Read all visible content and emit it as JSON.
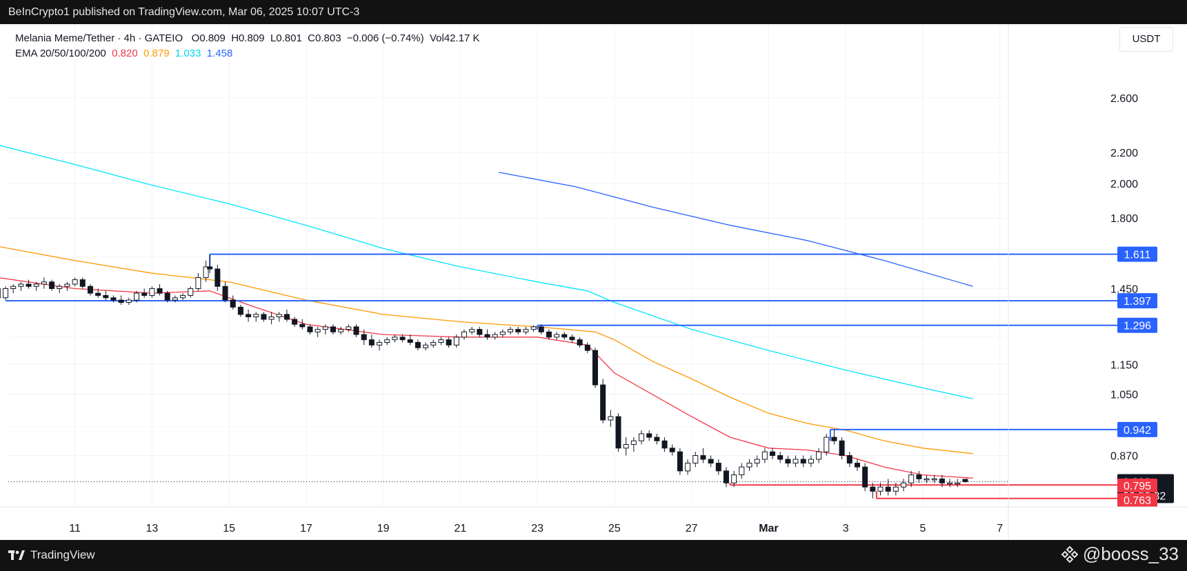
{
  "header": {
    "publisher_text": "BeInCrypto1 published on TradingView.com, Mar 06, 2025 10:07 UTC-3"
  },
  "legend": {
    "symbol": "Melania Meme/Tether · 4h · GATEIO",
    "open": "O0.809",
    "high": "H0.809",
    "low": "L0.801",
    "close": "C0.803",
    "change": "−0.006 (−0.74%)",
    "volume": "Vol42.17 K",
    "ema_label": "EMA 20/50/100/200",
    "ema20": "0.820",
    "ema50": "0.879",
    "ema100": "1.033",
    "ema200": "1.458"
  },
  "currency_button": "USDT",
  "footer": {
    "logo_text": "TradingView",
    "handle": "@booss_33"
  },
  "colors": {
    "ema20": "#f23645",
    "ema50": "#ff9800",
    "ema100": "#00e5ff",
    "ema200": "#2962ff",
    "level_blue": "#2962ff",
    "level_red": "#f23645",
    "current_price_badge": "#131722"
  },
  "chart_data": {
    "type": "candlestick",
    "scale": "log",
    "xlim": [
      "Feb 09",
      "Mar 07"
    ],
    "ylim": [
      0.73,
      2.9
    ],
    "x_tick_labels": [
      "11",
      "13",
      "15",
      "17",
      "19",
      "21",
      "23",
      "25",
      "27",
      "Mar",
      "3",
      "5",
      "7"
    ],
    "y_tick_labels": [
      "2.600",
      "2.200",
      "2.000",
      "1.800",
      "1.450",
      "1.150",
      "1.050",
      "0.870"
    ],
    "y_tick_values": [
      2.6,
      2.2,
      2.0,
      1.8,
      1.45,
      1.15,
      1.05,
      0.87
    ],
    "current_price": {
      "value": 0.803,
      "label": "0.803",
      "countdown": "02:52:32"
    },
    "levels": [
      {
        "value": 1.611,
        "label": "1.611",
        "color": "blue",
        "from_day": 14.5
      },
      {
        "value": 1.397,
        "label": "1.397",
        "color": "blue",
        "from_day": 9.2
      },
      {
        "value": 1.296,
        "label": "1.296",
        "color": "blue",
        "from_day": 23
      },
      {
        "value": 0.942,
        "label": "0.942",
        "color": "blue",
        "from_day": 30.6
      },
      {
        "value": 0.795,
        "label": "0.795",
        "color": "red",
        "from_day": 28
      },
      {
        "value": 0.763,
        "label": "0.763",
        "color": "red",
        "from_day": 31.8
      }
    ],
    "ema_series": [
      {
        "name": "EMA 20",
        "points": [
          [
            9.0,
            1.5
          ],
          [
            11,
            1.45
          ],
          [
            13,
            1.43
          ],
          [
            14.5,
            1.44
          ],
          [
            15.5,
            1.38
          ],
          [
            17,
            1.3
          ],
          [
            19,
            1.26
          ],
          [
            21,
            1.25
          ],
          [
            23,
            1.25
          ],
          [
            24.3,
            1.22
          ],
          [
            25,
            1.12
          ],
          [
            27,
            0.98
          ],
          [
            28,
            0.92
          ],
          [
            29,
            0.89
          ],
          [
            30,
            0.885
          ],
          [
            31,
            0.87
          ],
          [
            32,
            0.84
          ],
          [
            33,
            0.82
          ],
          [
            34.3,
            0.812
          ]
        ]
      },
      {
        "name": "EMA 50",
        "points": [
          [
            9.0,
            1.65
          ],
          [
            11,
            1.58
          ],
          [
            13,
            1.52
          ],
          [
            15,
            1.48
          ],
          [
            17,
            1.4
          ],
          [
            19,
            1.34
          ],
          [
            21,
            1.31
          ],
          [
            23,
            1.29
          ],
          [
            24.5,
            1.27
          ],
          [
            25,
            1.24
          ],
          [
            26,
            1.16
          ],
          [
            27,
            1.1
          ],
          [
            28,
            1.04
          ],
          [
            29,
            0.99
          ],
          [
            30,
            0.96
          ],
          [
            31,
            0.94
          ],
          [
            32,
            0.91
          ],
          [
            33,
            0.89
          ],
          [
            34.3,
            0.875
          ]
        ]
      },
      {
        "name": "EMA 100",
        "points": [
          [
            9.0,
            2.25
          ],
          [
            11,
            2.12
          ],
          [
            13,
            1.99
          ],
          [
            15,
            1.88
          ],
          [
            17,
            1.76
          ],
          [
            19,
            1.64
          ],
          [
            21,
            1.55
          ],
          [
            23,
            1.48
          ],
          [
            24.3,
            1.44
          ],
          [
            25,
            1.39
          ],
          [
            27,
            1.28
          ],
          [
            29,
            1.2
          ],
          [
            31,
            1.13
          ],
          [
            33,
            1.07
          ],
          [
            34.3,
            1.035
          ]
        ]
      },
      {
        "name": "EMA 200",
        "points": [
          [
            22.0,
            2.07
          ],
          [
            24,
            1.98
          ],
          [
            26,
            1.86
          ],
          [
            28,
            1.76
          ],
          [
            30,
            1.68
          ],
          [
            32,
            1.58
          ],
          [
            34.3,
            1.46
          ]
        ]
      }
    ],
    "candles": [
      [
        9.0,
        1.45,
        1.48,
        1.4,
        1.41
      ],
      [
        9.2,
        1.41,
        1.46,
        1.4,
        1.45
      ],
      [
        9.4,
        1.45,
        1.47,
        1.43,
        1.46
      ],
      [
        9.6,
        1.46,
        1.48,
        1.44,
        1.47
      ],
      [
        9.8,
        1.47,
        1.49,
        1.45,
        1.46
      ],
      [
        10.0,
        1.46,
        1.48,
        1.44,
        1.47
      ],
      [
        10.2,
        1.47,
        1.5,
        1.45,
        1.48
      ],
      [
        10.4,
        1.48,
        1.49,
        1.44,
        1.45
      ],
      [
        10.6,
        1.45,
        1.47,
        1.43,
        1.46
      ],
      [
        10.8,
        1.46,
        1.48,
        1.44,
        1.47
      ],
      [
        11.0,
        1.47,
        1.5,
        1.46,
        1.49
      ],
      [
        11.2,
        1.49,
        1.5,
        1.45,
        1.46
      ],
      [
        11.4,
        1.46,
        1.47,
        1.42,
        1.43
      ],
      [
        11.6,
        1.43,
        1.45,
        1.41,
        1.42
      ],
      [
        11.8,
        1.42,
        1.44,
        1.4,
        1.41
      ],
      [
        12.0,
        1.41,
        1.42,
        1.39,
        1.4
      ],
      [
        12.2,
        1.4,
        1.42,
        1.38,
        1.39
      ],
      [
        12.4,
        1.39,
        1.41,
        1.38,
        1.4
      ],
      [
        12.6,
        1.4,
        1.44,
        1.39,
        1.43
      ],
      [
        12.8,
        1.43,
        1.45,
        1.41,
        1.42
      ],
      [
        13.0,
        1.42,
        1.46,
        1.41,
        1.45
      ],
      [
        13.2,
        1.45,
        1.47,
        1.42,
        1.43
      ],
      [
        13.4,
        1.43,
        1.44,
        1.39,
        1.4
      ],
      [
        13.6,
        1.4,
        1.42,
        1.39,
        1.41
      ],
      [
        13.8,
        1.41,
        1.43,
        1.4,
        1.42
      ],
      [
        14.0,
        1.42,
        1.46,
        1.41,
        1.45
      ],
      [
        14.2,
        1.45,
        1.52,
        1.44,
        1.5
      ],
      [
        14.4,
        1.5,
        1.58,
        1.48,
        1.55
      ],
      [
        14.5,
        1.55,
        1.611,
        1.52,
        1.54
      ],
      [
        14.7,
        1.54,
        1.56,
        1.44,
        1.46
      ],
      [
        14.9,
        1.46,
        1.48,
        1.39,
        1.4
      ],
      [
        15.1,
        1.4,
        1.42,
        1.36,
        1.37
      ],
      [
        15.3,
        1.37,
        1.38,
        1.33,
        1.34
      ],
      [
        15.5,
        1.34,
        1.36,
        1.31,
        1.33
      ],
      [
        15.7,
        1.33,
        1.35,
        1.31,
        1.34
      ],
      [
        15.9,
        1.34,
        1.35,
        1.31,
        1.32
      ],
      [
        16.1,
        1.32,
        1.35,
        1.3,
        1.33
      ],
      [
        16.3,
        1.33,
        1.35,
        1.31,
        1.34
      ],
      [
        16.5,
        1.34,
        1.36,
        1.31,
        1.32
      ],
      [
        16.7,
        1.32,
        1.33,
        1.29,
        1.3
      ],
      [
        16.9,
        1.3,
        1.32,
        1.28,
        1.29
      ],
      [
        17.1,
        1.29,
        1.3,
        1.26,
        1.27
      ],
      [
        17.3,
        1.27,
        1.29,
        1.25,
        1.28
      ],
      [
        17.5,
        1.28,
        1.3,
        1.26,
        1.29
      ],
      [
        17.7,
        1.29,
        1.3,
        1.26,
        1.27
      ],
      [
        17.9,
        1.27,
        1.29,
        1.26,
        1.28
      ],
      [
        18.1,
        1.28,
        1.3,
        1.27,
        1.29
      ],
      [
        18.3,
        1.29,
        1.3,
        1.25,
        1.26
      ],
      [
        18.5,
        1.26,
        1.28,
        1.22,
        1.24
      ],
      [
        18.7,
        1.24,
        1.26,
        1.21,
        1.22
      ],
      [
        18.9,
        1.22,
        1.24,
        1.2,
        1.23
      ],
      [
        19.1,
        1.23,
        1.25,
        1.22,
        1.24
      ],
      [
        19.3,
        1.24,
        1.26,
        1.23,
        1.25
      ],
      [
        19.5,
        1.25,
        1.26,
        1.23,
        1.24
      ],
      [
        19.7,
        1.24,
        1.26,
        1.22,
        1.23
      ],
      [
        19.9,
        1.23,
        1.24,
        1.2,
        1.21
      ],
      [
        20.1,
        1.21,
        1.23,
        1.2,
        1.22
      ],
      [
        20.3,
        1.22,
        1.24,
        1.21,
        1.23
      ],
      [
        20.5,
        1.23,
        1.25,
        1.22,
        1.24
      ],
      [
        20.7,
        1.24,
        1.25,
        1.21,
        1.22
      ],
      [
        20.9,
        1.22,
        1.26,
        1.21,
        1.25
      ],
      [
        21.1,
        1.25,
        1.28,
        1.24,
        1.27
      ],
      [
        21.3,
        1.27,
        1.29,
        1.26,
        1.28
      ],
      [
        21.5,
        1.28,
        1.29,
        1.25,
        1.26
      ],
      [
        21.7,
        1.26,
        1.28,
        1.24,
        1.25
      ],
      [
        21.9,
        1.25,
        1.27,
        1.24,
        1.26
      ],
      [
        22.1,
        1.26,
        1.28,
        1.25,
        1.27
      ],
      [
        22.3,
        1.27,
        1.29,
        1.26,
        1.28
      ],
      [
        22.5,
        1.28,
        1.29,
        1.26,
        1.27
      ],
      [
        22.7,
        1.27,
        1.29,
        1.26,
        1.28
      ],
      [
        22.9,
        1.28,
        1.296,
        1.27,
        1.29
      ],
      [
        23.1,
        1.29,
        1.3,
        1.26,
        1.27
      ],
      [
        23.3,
        1.27,
        1.28,
        1.24,
        1.25
      ],
      [
        23.5,
        1.25,
        1.27,
        1.24,
        1.26
      ],
      [
        23.7,
        1.26,
        1.27,
        1.24,
        1.25
      ],
      [
        23.9,
        1.25,
        1.26,
        1.23,
        1.24
      ],
      [
        24.1,
        1.24,
        1.25,
        1.21,
        1.22
      ],
      [
        24.3,
        1.22,
        1.23,
        1.19,
        1.2
      ],
      [
        24.5,
        1.2,
        1.21,
        1.07,
        1.08
      ],
      [
        24.7,
        1.08,
        1.1,
        0.96,
        0.97
      ],
      [
        24.9,
        0.97,
        1.0,
        0.95,
        0.98
      ],
      [
        25.1,
        0.98,
        0.99,
        0.88,
        0.89
      ],
      [
        25.3,
        0.89,
        0.92,
        0.87,
        0.9
      ],
      [
        25.5,
        0.9,
        0.92,
        0.88,
        0.91
      ],
      [
        25.7,
        0.91,
        0.94,
        0.9,
        0.93
      ],
      [
        25.9,
        0.93,
        0.94,
        0.91,
        0.92
      ],
      [
        26.1,
        0.92,
        0.93,
        0.9,
        0.91
      ],
      [
        26.3,
        0.91,
        0.92,
        0.88,
        0.89
      ],
      [
        26.5,
        0.89,
        0.9,
        0.87,
        0.88
      ],
      [
        26.7,
        0.88,
        0.89,
        0.82,
        0.83
      ],
      [
        26.9,
        0.83,
        0.86,
        0.82,
        0.85
      ],
      [
        27.1,
        0.85,
        0.88,
        0.84,
        0.87
      ],
      [
        27.3,
        0.87,
        0.89,
        0.85,
        0.86
      ],
      [
        27.5,
        0.86,
        0.87,
        0.84,
        0.85
      ],
      [
        27.7,
        0.85,
        0.86,
        0.82,
        0.83
      ],
      [
        27.9,
        0.83,
        0.84,
        0.79,
        0.8
      ],
      [
        28.1,
        0.8,
        0.83,
        0.79,
        0.82
      ],
      [
        28.3,
        0.82,
        0.85,
        0.81,
        0.84
      ],
      [
        28.5,
        0.84,
        0.86,
        0.83,
        0.85
      ],
      [
        28.7,
        0.85,
        0.87,
        0.84,
        0.86
      ],
      [
        28.9,
        0.86,
        0.89,
        0.85,
        0.88
      ],
      [
        29.1,
        0.88,
        0.89,
        0.86,
        0.87
      ],
      [
        29.3,
        0.87,
        0.88,
        0.85,
        0.86
      ],
      [
        29.5,
        0.86,
        0.87,
        0.84,
        0.85
      ],
      [
        29.7,
        0.85,
        0.87,
        0.84,
        0.86
      ],
      [
        29.9,
        0.86,
        0.87,
        0.84,
        0.85
      ],
      [
        30.1,
        0.85,
        0.87,
        0.84,
        0.86
      ],
      [
        30.3,
        0.86,
        0.89,
        0.85,
        0.88
      ],
      [
        30.5,
        0.88,
        0.93,
        0.87,
        0.92
      ],
      [
        30.7,
        0.92,
        0.942,
        0.9,
        0.91
      ],
      [
        30.9,
        0.91,
        0.92,
        0.86,
        0.87
      ],
      [
        31.1,
        0.87,
        0.88,
        0.84,
        0.85
      ],
      [
        31.3,
        0.85,
        0.86,
        0.83,
        0.84
      ],
      [
        31.5,
        0.84,
        0.85,
        0.78,
        0.79
      ],
      [
        31.7,
        0.79,
        0.8,
        0.763,
        0.78
      ],
      [
        31.9,
        0.78,
        0.8,
        0.77,
        0.79
      ],
      [
        32.1,
        0.79,
        0.81,
        0.77,
        0.78
      ],
      [
        32.3,
        0.78,
        0.8,
        0.77,
        0.79
      ],
      [
        32.5,
        0.79,
        0.81,
        0.78,
        0.8
      ],
      [
        32.7,
        0.8,
        0.83,
        0.79,
        0.82
      ],
      [
        32.9,
        0.82,
        0.83,
        0.8,
        0.81
      ],
      [
        33.1,
        0.81,
        0.82,
        0.8,
        0.81
      ],
      [
        33.3,
        0.81,
        0.82,
        0.8,
        0.81
      ],
      [
        33.5,
        0.81,
        0.82,
        0.79,
        0.8
      ],
      [
        33.7,
        0.8,
        0.81,
        0.79,
        0.8
      ],
      [
        33.9,
        0.8,
        0.81,
        0.79,
        0.8
      ],
      [
        34.1,
        0.809,
        0.809,
        0.801,
        0.803
      ]
    ]
  }
}
